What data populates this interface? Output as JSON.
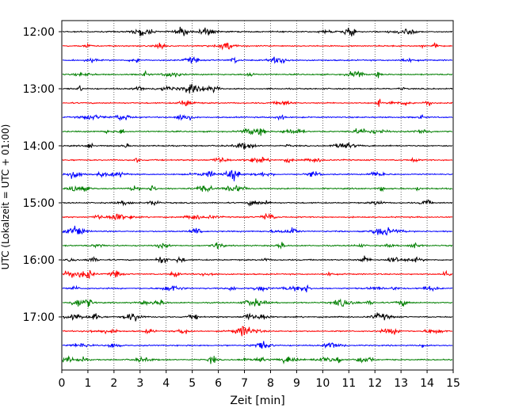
{
  "chart_data": {
    "type": "line",
    "xlabel": "Zeit  [min]",
    "ylabel": "UTC (Lokalzeit = UTC + 01:00)",
    "xlim": [
      0,
      15
    ],
    "x_ticks": [
      "0",
      "1",
      "2",
      "3",
      "4",
      "5",
      "6",
      "7",
      "8",
      "9",
      "10",
      "11",
      "12",
      "13",
      "14",
      "15"
    ],
    "y_ticks": [
      "12:00",
      "13:00",
      "14:00",
      "15:00",
      "16:00",
      "17:00"
    ],
    "grid": "vertical dotted",
    "trace_colors": [
      "#000000",
      "#ff0000",
      "#0000ff",
      "#007f00"
    ],
    "traces": [
      "12:00",
      "12:15",
      "12:30",
      "12:45",
      "13:00",
      "13:15",
      "13:30",
      "13:45",
      "14:00",
      "14:15",
      "14:30",
      "14:45",
      "15:00",
      "15:15",
      "15:30",
      "15:45",
      "16:00",
      "16:15",
      "16:30",
      "16:45",
      "17:00",
      "17:15",
      "17:30",
      "17:45"
    ]
  }
}
